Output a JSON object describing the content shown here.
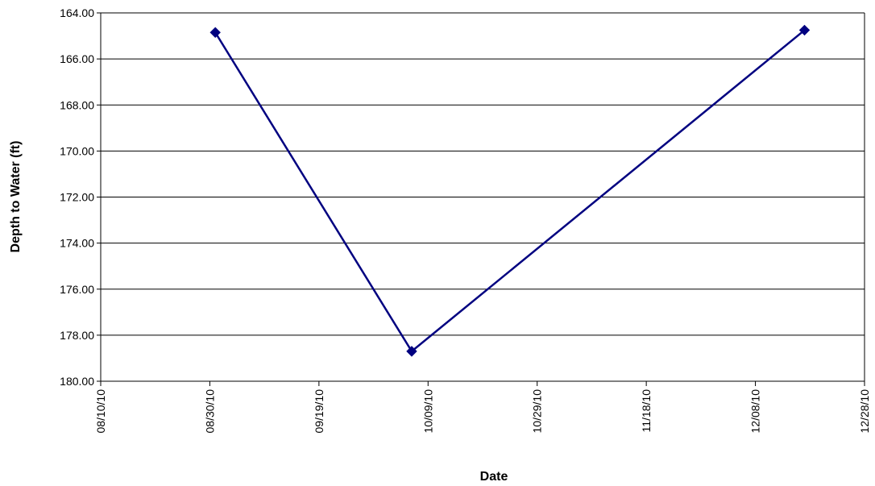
{
  "chart_data": {
    "type": "line",
    "title": "",
    "xlabel": "Date",
    "ylabel": "Depth to Water (ft)",
    "x_axis": {
      "kind": "date",
      "range": [
        "2010-08-10",
        "2010-12-28"
      ],
      "ticks": [
        "2010-08-10",
        "2010-08-30",
        "2010-09-19",
        "2010-10-09",
        "2010-10-29",
        "2010-11-18",
        "2010-12-08",
        "2010-12-28"
      ],
      "tick_labels": [
        "08/10/10",
        "08/30/10",
        "09/19/10",
        "10/09/10",
        "10/29/10",
        "11/18/10",
        "12/08/10",
        "12/28/10"
      ]
    },
    "y_axis": {
      "range": [
        164,
        180
      ],
      "inverted": true,
      "ticks": [
        164,
        166,
        168,
        170,
        172,
        174,
        176,
        178,
        180
      ],
      "tick_labels": [
        "164.00",
        "166.00",
        "168.00",
        "170.00",
        "172.00",
        "174.00",
        "176.00",
        "178.00",
        "180.00"
      ]
    },
    "grid": "horizontal",
    "legend": "none",
    "series": [
      {
        "color": "#000080",
        "marker": "diamond",
        "points": [
          {
            "x": "2010-08-31",
            "y": 164.85
          },
          {
            "x": "2010-10-06",
            "y": 178.7
          },
          {
            "x": "2010-12-17",
            "y": 164.75
          }
        ]
      }
    ]
  }
}
